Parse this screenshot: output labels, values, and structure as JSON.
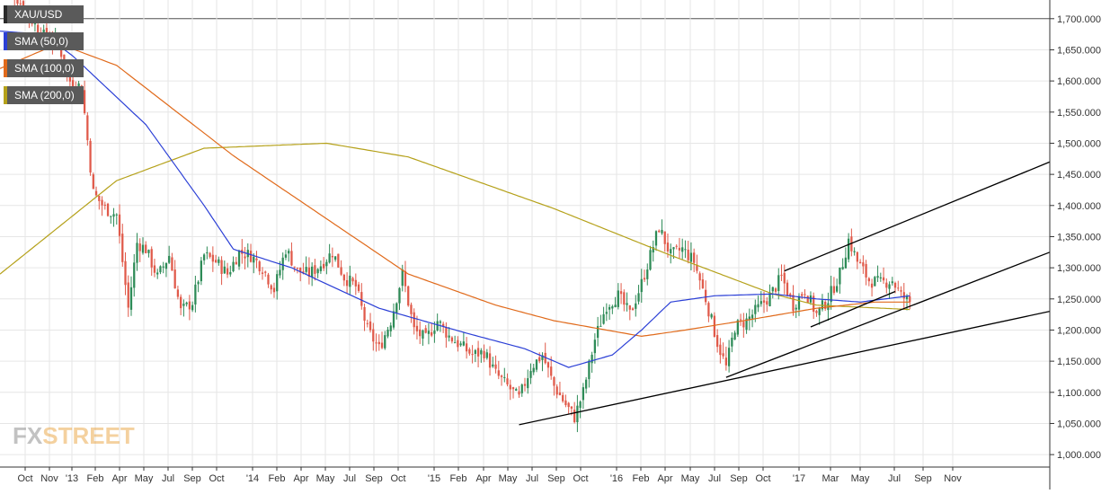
{
  "legend": [
    {
      "label": "XAU/USD",
      "color": "#2a2a2a"
    },
    {
      "label": "SMA (50,0)",
      "color": "#2b3fd6"
    },
    {
      "label": "SMA (100,0)",
      "color": "#e06a1b"
    },
    {
      "label": "SMA (200,0)",
      "color": "#b5a11a"
    }
  ],
  "logo": {
    "fx": "FX",
    "street": "STREET"
  },
  "colors": {
    "up": "#2e8b57",
    "down": "#e05a4a",
    "grid": "#e6e6e6",
    "axis": "#333333",
    "sma50": "#2b3fd6",
    "sma100": "#e06a1b",
    "sma200": "#b5a11a",
    "trendline": "#000000"
  },
  "chart_data": {
    "type": "candlestick",
    "symbol": "XAU/USD",
    "ylim": [
      980,
      1730
    ],
    "y_ticks": [
      "1,000.000",
      "1,050.000",
      "1,100.000",
      "1,150.000",
      "1,200.000",
      "1,250.000",
      "1,300.000",
      "1,350.000",
      "1,400.000",
      "1,450.000",
      "1,500.000",
      "1,550.000",
      "1,600.000",
      "1,650.000",
      "1,700.000"
    ],
    "x_ticks": [
      "Oct",
      "Nov",
      "'13",
      "Feb",
      "Apr",
      "May",
      "Jul",
      "Sep",
      "Oct",
      "'14",
      "Feb",
      "Apr",
      "May",
      "Jul",
      "Sep",
      "Oct",
      "'15",
      "Feb",
      "Apr",
      "May",
      "Jul",
      "Sep",
      "Oct",
      "'16",
      "Feb",
      "Apr",
      "May",
      "Jul",
      "Sep",
      "Oct",
      "'17",
      "Mar",
      "May",
      "Jul",
      "Sep",
      "Nov"
    ],
    "close_anchors": [
      [
        0,
        1770
      ],
      [
        8,
        1720
      ],
      [
        14,
        1675
      ],
      [
        20,
        1660
      ],
      [
        24,
        1600
      ],
      [
        28,
        1590
      ],
      [
        32,
        1420
      ],
      [
        36,
        1395
      ],
      [
        40,
        1385
      ],
      [
        44,
        1235
      ],
      [
        47,
        1340
      ],
      [
        50,
        1330
      ],
      [
        54,
        1285
      ],
      [
        58,
        1320
      ],
      [
        62,
        1230
      ],
      [
        66,
        1245
      ],
      [
        70,
        1320
      ],
      [
        74,
        1310
      ],
      [
        78,
        1290
      ],
      [
        82,
        1325
      ],
      [
        86,
        1320
      ],
      [
        90,
        1300
      ],
      [
        94,
        1265
      ],
      [
        98,
        1330
      ],
      [
        102,
        1295
      ],
      [
        106,
        1290
      ],
      [
        110,
        1305
      ],
      [
        114,
        1325
      ],
      [
        118,
        1285
      ],
      [
        122,
        1270
      ],
      [
        126,
        1200
      ],
      [
        130,
        1170
      ],
      [
        134,
        1215
      ],
      [
        138,
        1290
      ],
      [
        142,
        1200
      ],
      [
        146,
        1185
      ],
      [
        150,
        1215
      ],
      [
        154,
        1190
      ],
      [
        158,
        1175
      ],
      [
        162,
        1160
      ],
      [
        166,
        1165
      ],
      [
        170,
        1130
      ],
      [
        174,
        1110
      ],
      [
        178,
        1090
      ],
      [
        182,
        1140
      ],
      [
        186,
        1160
      ],
      [
        190,
        1110
      ],
      [
        194,
        1080
      ],
      [
        197,
        1060
      ],
      [
        200,
        1100
      ],
      [
        204,
        1185
      ],
      [
        208,
        1240
      ],
      [
        212,
        1255
      ],
      [
        216,
        1225
      ],
      [
        220,
        1275
      ],
      [
        224,
        1335
      ],
      [
        226,
        1365
      ],
      [
        230,
        1320
      ],
      [
        234,
        1330
      ],
      [
        238,
        1310
      ],
      [
        242,
        1250
      ],
      [
        246,
        1180
      ],
      [
        249,
        1140
      ],
      [
        252,
        1205
      ],
      [
        256,
        1215
      ],
      [
        260,
        1235
      ],
      [
        264,
        1255
      ],
      [
        268,
        1285
      ],
      [
        272,
        1240
      ],
      [
        276,
        1265
      ],
      [
        280,
        1225
      ],
      [
        284,
        1250
      ],
      [
        288,
        1290
      ],
      [
        291,
        1345
      ],
      [
        294,
        1310
      ],
      [
        298,
        1280
      ],
      [
        302,
        1275
      ],
      [
        306,
        1280
      ],
      [
        309,
        1255
      ],
      [
        312,
        1245
      ]
    ],
    "highlighted_lows": [
      {
        "week": 0,
        "value": 1760
      },
      {
        "week": 178,
        "value": 1046
      },
      {
        "week": 249,
        "value": 1124
      },
      {
        "week": 278,
        "value": 1205
      }
    ],
    "sma_200_anchors": [
      [
        0,
        1290
      ],
      [
        40,
        1440
      ],
      [
        70,
        1492
      ],
      [
        112,
        1500
      ],
      [
        140,
        1478
      ],
      [
        190,
        1395
      ],
      [
        230,
        1320
      ],
      [
        265,
        1258
      ],
      [
        280,
        1240
      ],
      [
        312,
        1233
      ]
    ],
    "sma_100_anchors": [
      [
        0,
        1620
      ],
      [
        20,
        1660
      ],
      [
        40,
        1625
      ],
      [
        80,
        1480
      ],
      [
        140,
        1290
      ],
      [
        170,
        1240
      ],
      [
        190,
        1215
      ],
      [
        220,
        1190
      ],
      [
        235,
        1200
      ],
      [
        255,
        1215
      ],
      [
        280,
        1235
      ],
      [
        300,
        1245
      ],
      [
        312,
        1245
      ]
    ],
    "sma_50_anchors": [
      [
        0,
        1680
      ],
      [
        15,
        1675
      ],
      [
        25,
        1640
      ],
      [
        50,
        1530
      ],
      [
        70,
        1400
      ],
      [
        80,
        1330
      ],
      [
        100,
        1300
      ],
      [
        130,
        1235
      ],
      [
        160,
        1195
      ],
      [
        180,
        1170
      ],
      [
        195,
        1140
      ],
      [
        210,
        1160
      ],
      [
        220,
        1200
      ],
      [
        230,
        1245
      ],
      [
        245,
        1255
      ],
      [
        265,
        1258
      ],
      [
        280,
        1250
      ],
      [
        295,
        1245
      ],
      [
        312,
        1255
      ]
    ],
    "trendlines": [
      {
        "from": [
          178,
          1048
        ],
        "to": [
          360,
          1230
        ]
      },
      {
        "from": [
          249,
          1124
        ],
        "to": [
          360,
          1325
        ]
      },
      {
        "from": [
          269,
          1295
        ],
        "to": [
          360,
          1470
        ]
      },
      {
        "from": [
          278,
          1205
        ],
        "to": [
          307,
          1262
        ]
      }
    ],
    "last_price": 1255
  }
}
